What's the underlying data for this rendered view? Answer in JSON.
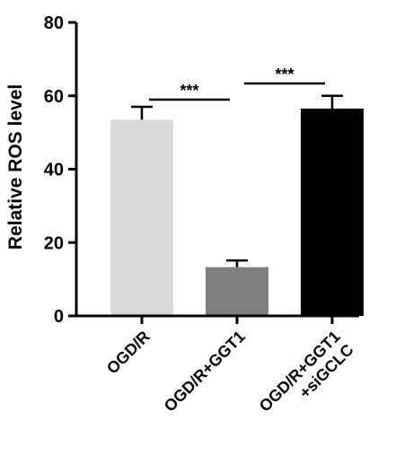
{
  "chart_data": {
    "type": "bar",
    "categories": [
      {
        "lines": [
          "OGD/R"
        ]
      },
      {
        "lines": [
          "OGD/R+GGT1"
        ]
      },
      {
        "lines": [
          "OGD/R+GGT1",
          "+siGCLC"
        ]
      }
    ],
    "values": [
      53.5,
      13.3,
      56.5
    ],
    "errors": [
      3.5,
      1.8,
      3.5
    ],
    "bar_colors": [
      "#d9d9d9",
      "#7f7f7f",
      "#000000"
    ],
    "ylabel": "Relative ROS level",
    "ylim": [
      0,
      80
    ],
    "yticks": [
      0,
      20,
      40,
      60,
      80
    ],
    "grid": false,
    "significance": [
      {
        "from": 0,
        "to": 1,
        "label": "***"
      },
      {
        "from": 1,
        "to": 2,
        "label": "***"
      }
    ]
  }
}
